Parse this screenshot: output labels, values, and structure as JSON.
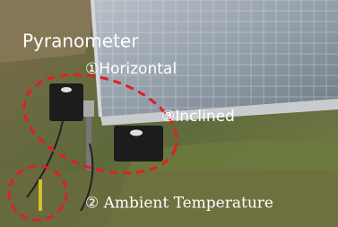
{
  "annotations": {
    "title": "Pyranometer",
    "horizontal": "①Horizontal",
    "inclined": "③Inclined",
    "ambient": "② Ambient Temperature"
  }
}
